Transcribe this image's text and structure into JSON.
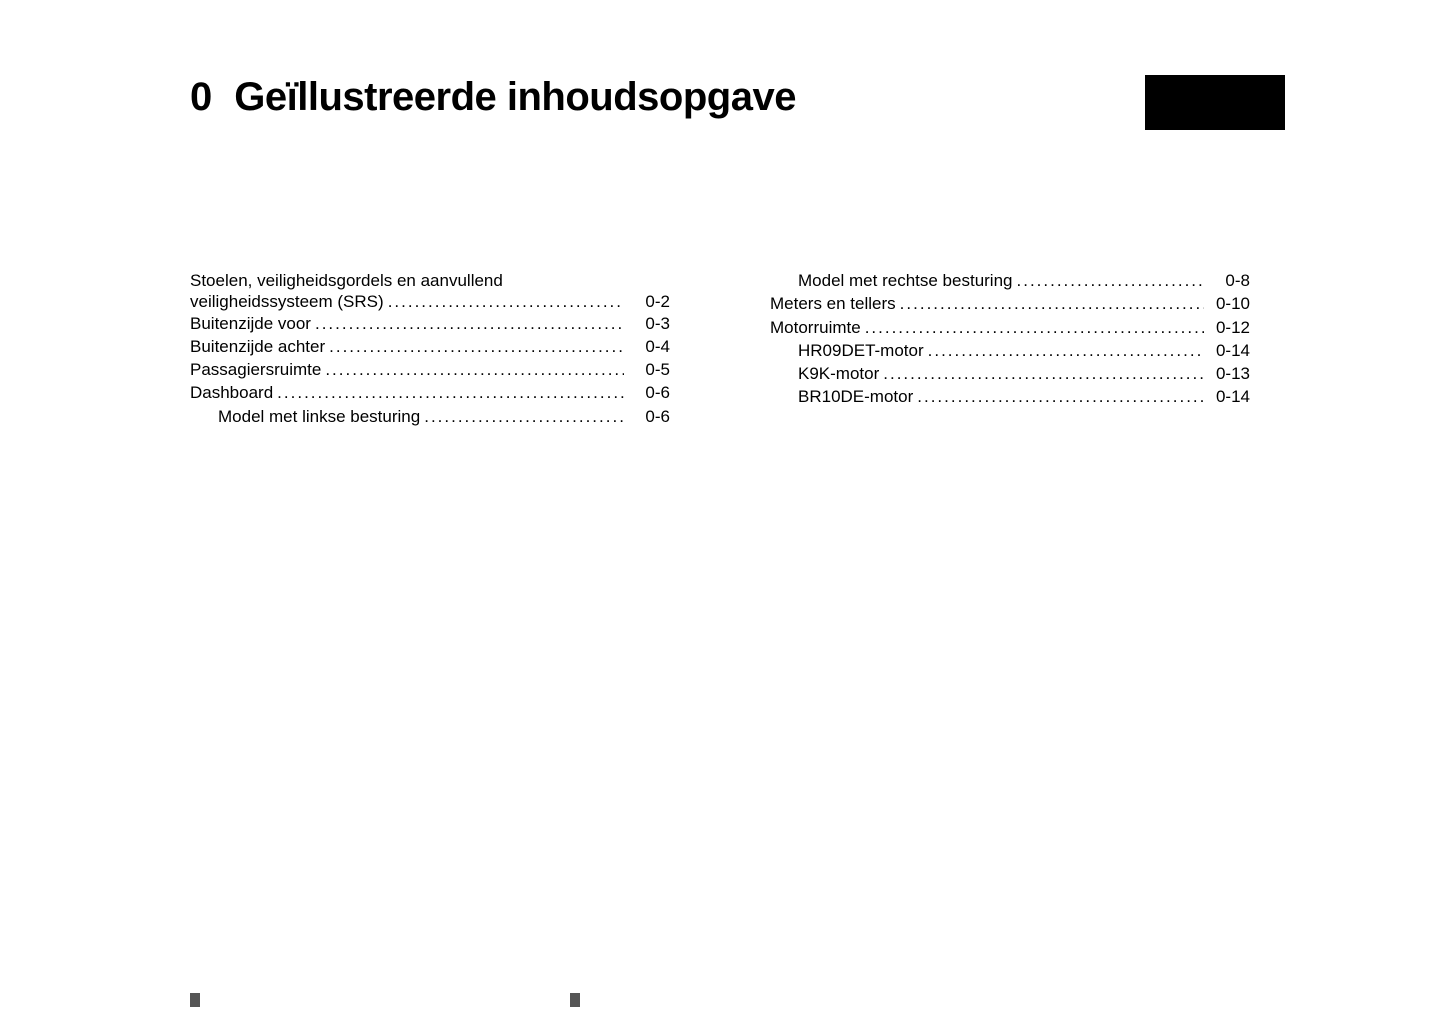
{
  "chapter_number": "0",
  "chapter_title": "Geïllustreerde inhoudsopgave",
  "colors": {
    "text": "#000000",
    "background": "#ffffff",
    "tab": "#000000"
  },
  "typography": {
    "title_fontsize_pt": 30,
    "body_fontsize_pt": 13,
    "title_weight": "bold",
    "body_weight": "normal",
    "family": "Arial"
  },
  "left_column": [
    {
      "label_line1": "Stoelen, veiligheidsgordels en aanvullend",
      "label_line2": "veiligheidssysteem (SRS)",
      "page": "0-2",
      "indent": false,
      "wrapped": true
    },
    {
      "label": "Buitenzijde voor",
      "page": "0-3",
      "indent": false
    },
    {
      "label": "Buitenzijde achter",
      "page": "0-4",
      "indent": false
    },
    {
      "label": "Passagiersruimte",
      "page": "0-5",
      "indent": false
    },
    {
      "label": "Dashboard",
      "page": "0-6",
      "indent": false
    },
    {
      "label": "Model met linkse besturing",
      "page": "0-6",
      "indent": true
    }
  ],
  "right_column": [
    {
      "label": "Model met rechtse besturing",
      "page": "0-8",
      "indent": true
    },
    {
      "label": "Meters en tellers",
      "page": "0-10",
      "indent": false
    },
    {
      "label": "Motorruimte",
      "page": "0-12",
      "indent": false
    },
    {
      "label": "HR09DET-motor",
      "page": "0-14",
      "indent": true
    },
    {
      "label": "K9K-motor",
      "page": "0-13",
      "indent": true
    },
    {
      "label": "BR10DE-motor",
      "page": "0-14",
      "indent": true
    }
  ],
  "leader_dots": "....................................................................................................."
}
